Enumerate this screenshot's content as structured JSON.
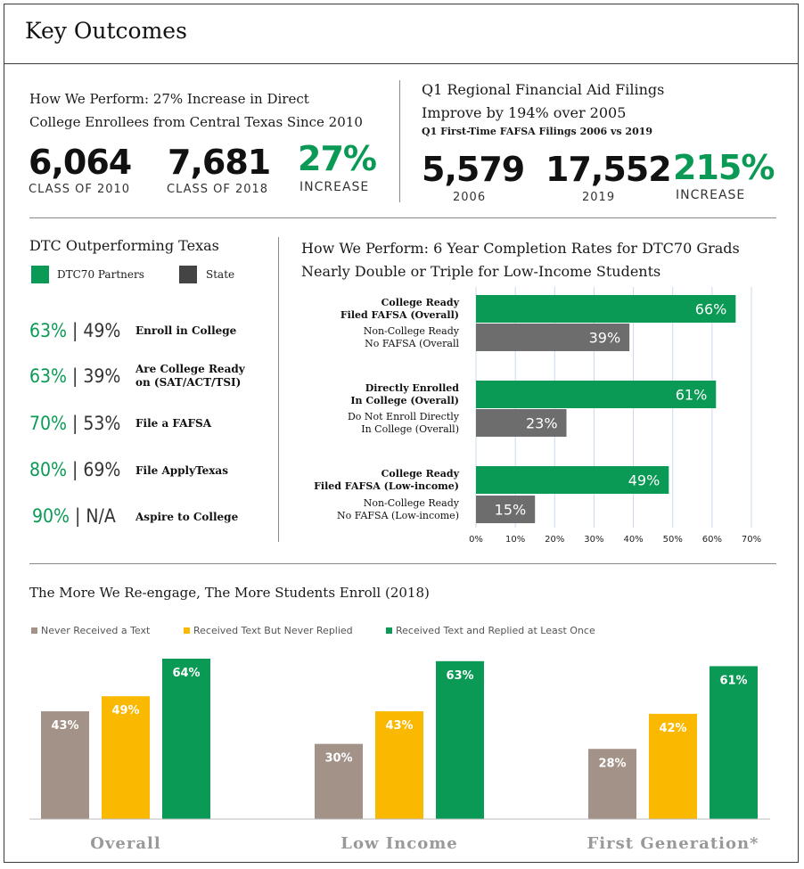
{
  "title": "Key Outcomes",
  "section1": {
    "heading_line1": "How We Perform: 27% Increase in Direct",
    "heading_line2": "College Enrollees from Central Texas Since 2010",
    "stats": [
      {
        "value": "6,064",
        "label": "CLASS OF 2010"
      },
      {
        "value": "7,681",
        "label": "CLASS OF 2018"
      },
      {
        "value": "27%",
        "label": "INCREASE"
      }
    ]
  },
  "section2": {
    "heading_line1": "Q1 Regional Financial Aid Filings",
    "heading_line2": "Improve by 194% over 2005",
    "subheading": "Q1 First-Time FAFSA Filings 2006 vs 2019",
    "stats": [
      {
        "value": "5,579",
        "label": "2006"
      },
      {
        "value": "17,552",
        "label": "2019"
      },
      {
        "value": "215%",
        "label": "INCREASE"
      }
    ]
  },
  "section3": {
    "heading": "DTC Outperforming Texas",
    "legend": [
      {
        "label": "DTC70 Partners",
        "color": "#0a9a55"
      },
      {
        "label": "State",
        "color": "#444444"
      }
    ],
    "rows": [
      {
        "partner": "63%",
        "state": "49%",
        "sep": "|",
        "label_line1": "Enroll in College",
        "label_line2": ""
      },
      {
        "partner": "63%",
        "state": "39%",
        "sep": "|",
        "label_line1": "Are College Ready",
        "label_line2": "on (SAT/ACT/TSI)"
      },
      {
        "partner": "70%",
        "state": "53%",
        "sep": "|",
        "label_line1": "File a FAFSA",
        "label_line2": ""
      },
      {
        "partner": "80%",
        "state": "69%",
        "sep": "|",
        "label_line1": "File ApplyTexas",
        "label_line2": ""
      },
      {
        "partner": "90%",
        "state": "N/A",
        "sep": "|",
        "label_line1": "Aspire to College",
        "label_line2": ""
      }
    ]
  },
  "chart_data": [
    {
      "type": "bar",
      "orientation": "horizontal",
      "title_line1": "How We Perform: 6 Year Completion Rates for DTC70 Grads",
      "title_line2": "Nearly Double or Triple for Low-Income Students",
      "bars": [
        {
          "line1": "College Ready",
          "line2": "Filed FAFSA (Overall)",
          "bold": true,
          "value": 66,
          "label": "66%",
          "color": "#0a9a55"
        },
        {
          "line1": "Non-College Ready",
          "line2": "No FAFSA (Overall",
          "bold": false,
          "value": 39,
          "label": "39%",
          "color": "#6d6d6d"
        },
        {
          "line1": "Directly Enrolled",
          "line2": "In College (Overall)",
          "bold": true,
          "value": 61,
          "label": "61%",
          "color": "#0a9a55"
        },
        {
          "line1": "Do Not Enroll Directly",
          "line2": "In College (Overall)",
          "bold": false,
          "value": 23,
          "label": "23%",
          "color": "#6d6d6d"
        },
        {
          "line1": "College Ready",
          "line2": "Filed FAFSA (Low-income)",
          "bold": true,
          "value": 49,
          "label": "49%",
          "color": "#0a9a55"
        },
        {
          "line1": "Non-College Ready",
          "line2": "No FAFSA (Low-income)",
          "bold": false,
          "value": 15,
          "label": "15%",
          "color": "#6d6d6d"
        }
      ],
      "xlim": [
        0,
        70
      ],
      "xticks": [
        "0%",
        "10%",
        "20%",
        "30%",
        "40%",
        "50%",
        "60%",
        "70%"
      ],
      "grid": "vertical"
    },
    {
      "type": "bar",
      "orientation": "vertical",
      "title": "The More We Re-engage, The More Students Enroll (2018)",
      "legend_placement": "top-left",
      "categories": [
        "Overall",
        "Low Income",
        "First Generation*"
      ],
      "series": [
        {
          "name": "Never Received a Text",
          "color": "#a39287",
          "values": [
            43,
            30,
            28
          ],
          "labels": [
            "43%",
            "30%",
            "28%"
          ]
        },
        {
          "name": "Received Text But Never Replied",
          "color": "#fbb800",
          "values": [
            49,
            43,
            42
          ],
          "labels": [
            "49%",
            "43%",
            "42%"
          ]
        },
        {
          "name": "Received Text and Replied at Least Once",
          "color": "#0a9a55",
          "values": [
            64,
            63,
            61
          ],
          "labels": [
            "64%",
            "63%",
            "61%"
          ]
        }
      ],
      "ylim": [
        0,
        66
      ]
    }
  ]
}
